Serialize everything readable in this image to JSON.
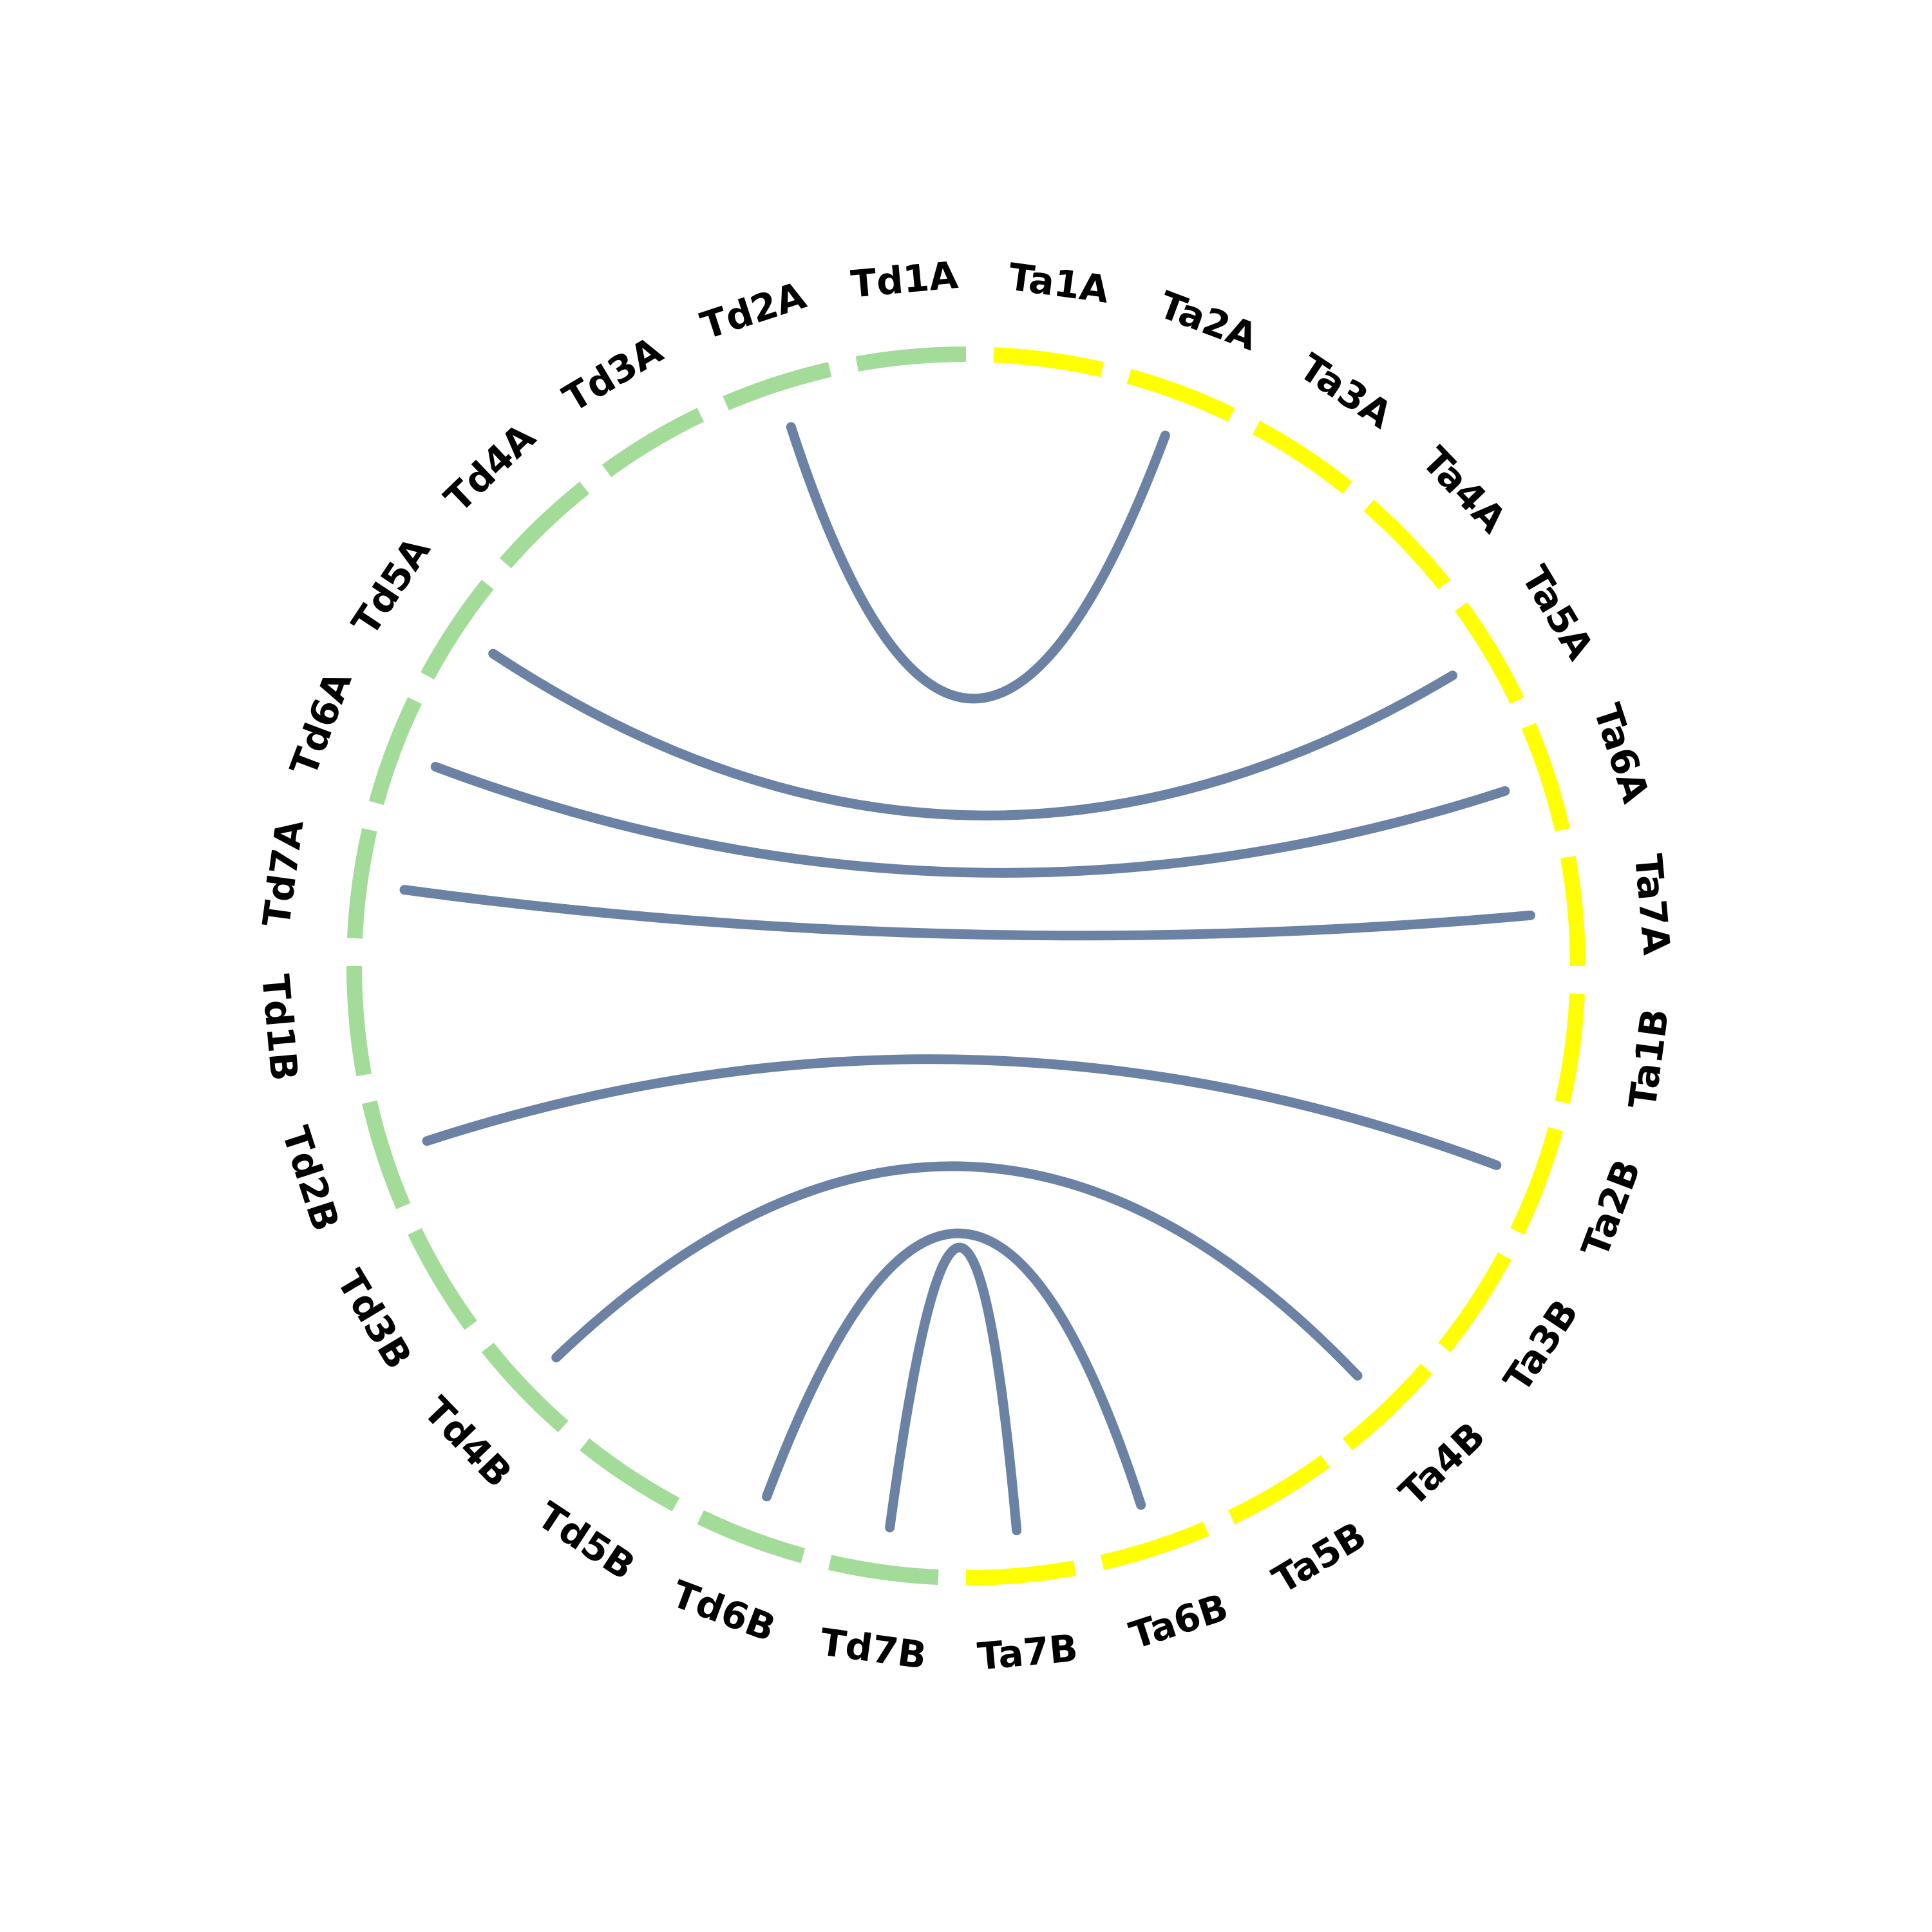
{
  "colors": {
    "background": "#ffffff",
    "Td_segment": "#a3db99",
    "Ta_segment": "#ffff00",
    "link": "#6b82a5",
    "label": "#000000"
  },
  "segments": [
    {
      "label": "Ta1A",
      "group": "Ta"
    },
    {
      "label": "Ta2A",
      "group": "Ta"
    },
    {
      "label": "Ta3A",
      "group": "Ta"
    },
    {
      "label": "Ta4A",
      "group": "Ta"
    },
    {
      "label": "Ta5A",
      "group": "Ta"
    },
    {
      "label": "Ta6A",
      "group": "Ta"
    },
    {
      "label": "Ta7A",
      "group": "Ta"
    },
    {
      "label": "Ta1B",
      "group": "Ta"
    },
    {
      "label": "Ta2B",
      "group": "Ta"
    },
    {
      "label": "Ta3B",
      "group": "Ta"
    },
    {
      "label": "Ta4B",
      "group": "Ta"
    },
    {
      "label": "Ta5B",
      "group": "Ta"
    },
    {
      "label": "Ta6B",
      "group": "Ta"
    },
    {
      "label": "Ta7B",
      "group": "Ta"
    },
    {
      "label": "Td7B",
      "group": "Td"
    },
    {
      "label": "Td6B",
      "group": "Td"
    },
    {
      "label": "Td5B",
      "group": "Td"
    },
    {
      "label": "Td4B",
      "group": "Td"
    },
    {
      "label": "Td3B",
      "group": "Td"
    },
    {
      "label": "Td2B",
      "group": "Td"
    },
    {
      "label": "Td1B",
      "group": "Td"
    },
    {
      "label": "Td7A",
      "group": "Td"
    },
    {
      "label": "Td6A",
      "group": "Td"
    },
    {
      "label": "Td5A",
      "group": "Td"
    },
    {
      "label": "Td4A",
      "group": "Td"
    },
    {
      "label": "Td3A",
      "group": "Td"
    },
    {
      "label": "Td2A",
      "group": "Td"
    },
    {
      "label": "Td1A",
      "group": "Td"
    }
  ],
  "links": [
    {
      "from": "Td2A",
      "to": "Ta2A"
    },
    {
      "from": "Td5A",
      "to": "Ta5A"
    },
    {
      "from": "Td6A",
      "to": "Ta6A"
    },
    {
      "from": "Td7A",
      "to": "Ta7A"
    },
    {
      "from": "Td2B",
      "to": "Ta2B"
    },
    {
      "from": "Td4B",
      "to": "Ta4B"
    },
    {
      "from": "Td6B",
      "to": "Ta6B"
    },
    {
      "from": "Td7B",
      "to": "Ta7B"
    }
  ]
}
